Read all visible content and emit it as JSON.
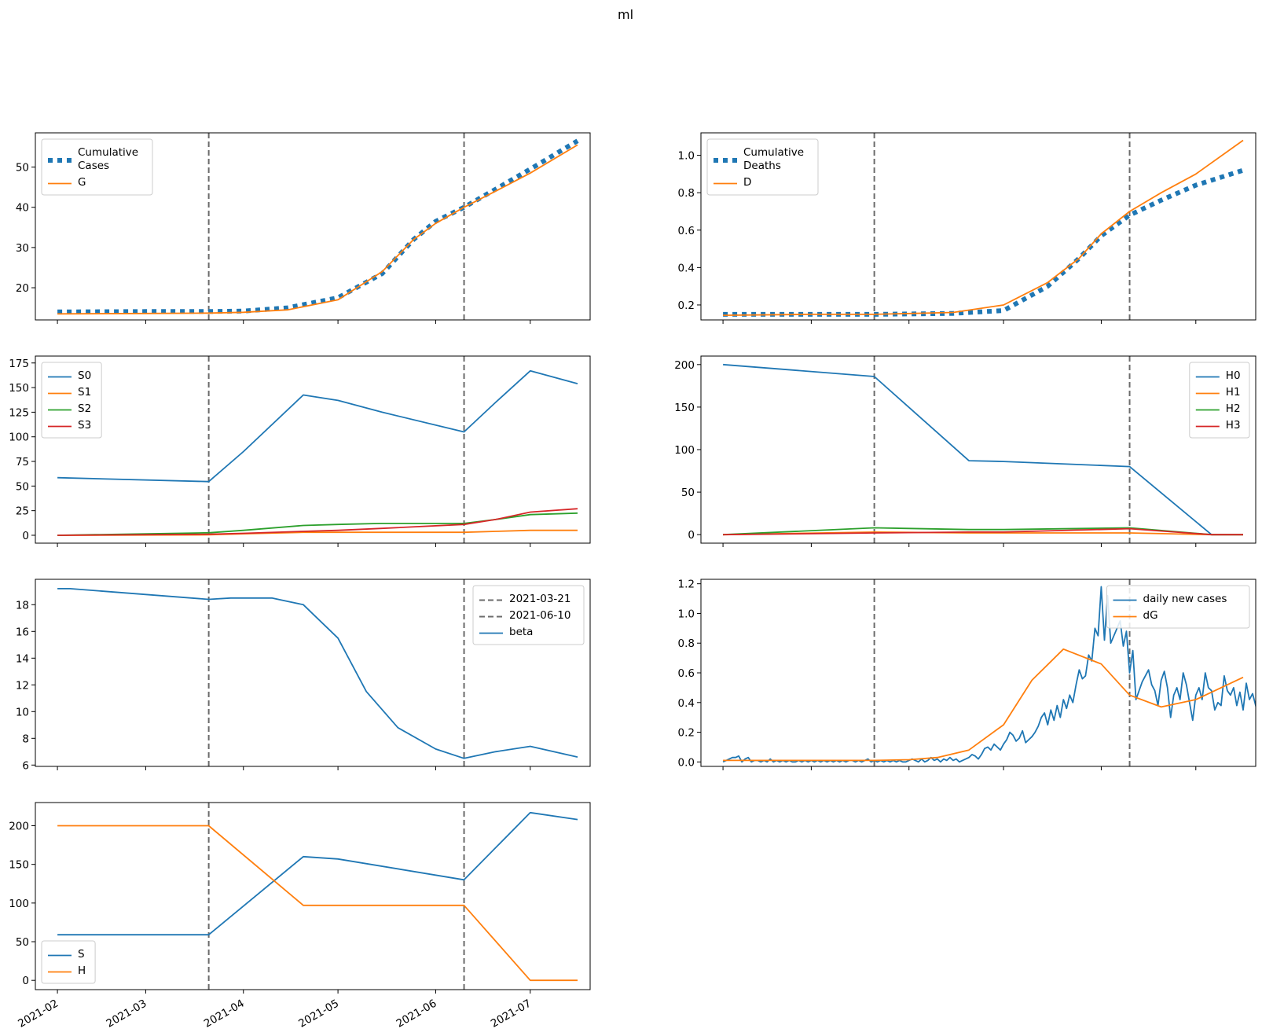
{
  "figure": {
    "suptitle": "ml"
  },
  "colors": {
    "blue": "#1f77b4",
    "orange": "#ff7f0e",
    "green": "#2ca02c",
    "red": "#d62728",
    "vline": "#6b6b6b"
  },
  "x_axis": {
    "start_date": "2021-01-25",
    "end_date": "2021-07-20",
    "tick_labels": [
      "2021-02",
      "2021-03",
      "2021-04",
      "2021-05",
      "2021-06",
      "2021-07"
    ],
    "tick_dates": [
      "2021-02-01",
      "2021-03-01",
      "2021-04-01",
      "2021-05-01",
      "2021-06-01",
      "2021-07-01"
    ],
    "vlines": [
      "2021-03-21",
      "2021-06-10"
    ]
  },
  "chart_data": [
    {
      "id": "cases",
      "type": "line",
      "x": [
        "2021-02-01",
        "2021-03-01",
        "2021-03-21",
        "2021-04-01",
        "2021-04-15",
        "2021-05-01",
        "2021-05-15",
        "2021-05-25",
        "2021-06-01",
        "2021-06-10",
        "2021-06-20",
        "2021-07-01",
        "2021-07-16"
      ],
      "ylim": [
        12.0,
        58.5
      ],
      "yticks": [
        20,
        30,
        40,
        50
      ],
      "legend_loc": "upper-left",
      "series": [
        {
          "name": "Cumulative\nCases",
          "style": "dotted-thick",
          "color": "blue",
          "values": [
            14.0,
            14.1,
            14.1,
            14.2,
            15.0,
            17.5,
            23.5,
            32.0,
            36.5,
            40.0,
            44.5,
            49.5,
            56.5
          ]
        },
        {
          "name": "G",
          "style": "solid",
          "color": "orange",
          "values": [
            13.5,
            13.6,
            13.7,
            13.9,
            14.5,
            17.0,
            24.0,
            32.0,
            36.0,
            40.0,
            44.0,
            48.5,
            55.5
          ]
        }
      ]
    },
    {
      "id": "deaths",
      "type": "line",
      "x": [
        "2021-02-01",
        "2021-03-01",
        "2021-03-21",
        "2021-04-15",
        "2021-05-01",
        "2021-05-15",
        "2021-05-25",
        "2021-06-01",
        "2021-06-10",
        "2021-06-20",
        "2021-07-01",
        "2021-07-16"
      ],
      "ylim": [
        0.12,
        1.12
      ],
      "yticks": [
        0.2,
        0.4,
        0.6,
        0.8,
        1.0
      ],
      "legend_loc": "upper-left",
      "series": [
        {
          "name": "Cumulative\nDeaths",
          "style": "dotted-thick",
          "color": "blue",
          "values": [
            0.15,
            0.15,
            0.15,
            0.155,
            0.17,
            0.3,
            0.45,
            0.57,
            0.68,
            0.76,
            0.84,
            0.92
          ]
        },
        {
          "name": "D",
          "style": "solid",
          "color": "orange",
          "values": [
            0.145,
            0.15,
            0.15,
            0.16,
            0.2,
            0.32,
            0.45,
            0.58,
            0.7,
            0.8,
            0.9,
            1.08
          ]
        }
      ]
    },
    {
      "id": "S",
      "type": "line",
      "x": [
        "2021-02-01",
        "2021-03-21",
        "2021-04-01",
        "2021-04-20",
        "2021-05-01",
        "2021-05-15",
        "2021-06-10",
        "2021-06-20",
        "2021-07-01",
        "2021-07-16"
      ],
      "ylim": [
        -8,
        182
      ],
      "yticks": [
        0,
        25,
        50,
        75,
        100,
        125,
        150,
        175
      ],
      "legend_loc": "upper-left",
      "series": [
        {
          "name": "S0",
          "color": "blue",
          "values": [
            58.5,
            54.5,
            85,
            142.5,
            137,
            125,
            105,
            135,
            167,
            154
          ]
        },
        {
          "name": "S1",
          "color": "orange",
          "values": [
            0,
            0.5,
            1.5,
            3,
            3,
            3,
            3,
            4,
            5,
            5
          ]
        },
        {
          "name": "S2",
          "color": "green",
          "values": [
            0,
            2.5,
            5,
            10,
            11,
            12,
            12,
            16,
            21,
            22.5
          ]
        },
        {
          "name": "S3",
          "color": "red",
          "values": [
            0,
            1,
            2,
            4,
            5,
            7,
            11,
            16,
            23.5,
            27
          ]
        }
      ]
    },
    {
      "id": "H",
      "type": "line",
      "x": [
        "2021-02-01",
        "2021-03-21",
        "2021-04-20",
        "2021-05-01",
        "2021-06-10",
        "2021-07-06",
        "2021-07-16"
      ],
      "ylim": [
        -10,
        210
      ],
      "yticks": [
        0,
        50,
        100,
        150,
        200
      ],
      "legend_loc": "upper-right",
      "series": [
        {
          "name": "H0",
          "color": "blue",
          "values": [
            200,
            186,
            87,
            86,
            80,
            0,
            0
          ]
        },
        {
          "name": "H1",
          "color": "orange",
          "values": [
            0,
            3,
            2,
            2,
            2,
            0,
            0
          ]
        },
        {
          "name": "H2",
          "color": "green",
          "values": [
            0,
            8,
            6,
            6,
            8,
            0,
            0
          ]
        },
        {
          "name": "H3",
          "color": "red",
          "values": [
            0,
            2,
            3,
            3,
            7,
            0,
            0
          ]
        }
      ]
    },
    {
      "id": "beta",
      "type": "line",
      "x": [
        "2021-02-01",
        "2021-02-05",
        "2021-03-21",
        "2021-03-28",
        "2021-04-10",
        "2021-04-20",
        "2021-05-01",
        "2021-05-10",
        "2021-05-20",
        "2021-06-01",
        "2021-06-10",
        "2021-06-20",
        "2021-07-01",
        "2021-07-16"
      ],
      "ylim": [
        5.9,
        19.9
      ],
      "yticks": [
        6,
        8,
        10,
        12,
        14,
        16,
        18
      ],
      "legend_loc": "upper-right",
      "vline_labels": [
        "2021-03-21",
        "2021-06-10"
      ],
      "series": [
        {
          "name": "beta",
          "color": "blue",
          "values": [
            19.2,
            19.2,
            18.4,
            18.5,
            18.5,
            18.0,
            15.5,
            11.5,
            8.8,
            7.2,
            6.5,
            7.0,
            7.4,
            6.6
          ]
        }
      ]
    },
    {
      "id": "daily",
      "type": "line",
      "x_start": "2021-02-01",
      "ylim": [
        -0.03,
        1.23
      ],
      "yticks": [
        0.0,
        0.2,
        0.4,
        0.6,
        0.8,
        1.0,
        1.2
      ],
      "legend_loc": "upper-right",
      "series": [
        {
          "name": "daily new cases",
          "color": "blue",
          "values": [
            0.0,
            0.01,
            0.02,
            0.03,
            0.03,
            0.04,
            0.0,
            0.02,
            0.03,
            0.0,
            0.01,
            0.01,
            0.0,
            0.01,
            0.0,
            0.02,
            0.0,
            0.01,
            0.0,
            0.01,
            0.0,
            0.01,
            0.0,
            0.0,
            0.01,
            0.0,
            0.01,
            0.0,
            0.01,
            0.0,
            0.01,
            0.0,
            0.01,
            0.0,
            0.01,
            0.0,
            0.01,
            0.0,
            0.01,
            0.0,
            0.01,
            0.01,
            0.0,
            0.01,
            0.0,
            0.01,
            0.02,
            0.0,
            0.01,
            0.0,
            0.01,
            0.0,
            0.01,
            0.0,
            0.01,
            0.0,
            0.01,
            0.0,
            0.0,
            0.01,
            0.02,
            0.01,
            0.0,
            0.02,
            0.0,
            0.01,
            0.03,
            0.01,
            0.02,
            0.0,
            0.02,
            0.01,
            0.03,
            0.01,
            0.02,
            0.0,
            0.01,
            0.02,
            0.03,
            0.05,
            0.04,
            0.02,
            0.05,
            0.09,
            0.1,
            0.08,
            0.12,
            0.1,
            0.08,
            0.12,
            0.15,
            0.2,
            0.18,
            0.14,
            0.16,
            0.21,
            0.13,
            0.15,
            0.17,
            0.2,
            0.24,
            0.3,
            0.33,
            0.25,
            0.35,
            0.28,
            0.38,
            0.3,
            0.42,
            0.36,
            0.45,
            0.4,
            0.52,
            0.62,
            0.56,
            0.58,
            0.72,
            0.68,
            0.9,
            0.85,
            1.18,
            0.82,
            1.12,
            0.8,
            0.85,
            0.9,
            0.95,
            0.78,
            0.88,
            0.6,
            0.75,
            0.42,
            0.48,
            0.54,
            0.58,
            0.62,
            0.52,
            0.48,
            0.38,
            0.55,
            0.61,
            0.5,
            0.3,
            0.45,
            0.5,
            0.42,
            0.6,
            0.52,
            0.4,
            0.28,
            0.45,
            0.5,
            0.42,
            0.6,
            0.5,
            0.48,
            0.35,
            0.4,
            0.38,
            0.58,
            0.48,
            0.45,
            0.5,
            0.38,
            0.47,
            0.35,
            0.53,
            0.42,
            0.46,
            0.38,
            0.28,
            0.35,
            0.42,
            0.41
          ]
        },
        {
          "name": "dG",
          "color": "orange",
          "x": [
            "2021-02-01",
            "2021-03-21",
            "2021-04-01",
            "2021-04-10",
            "2021-04-20",
            "2021-05-01",
            "2021-05-10",
            "2021-05-20",
            "2021-06-01",
            "2021-06-10",
            "2021-06-20",
            "2021-07-01",
            "2021-07-16"
          ],
          "values": [
            0.01,
            0.01,
            0.015,
            0.03,
            0.08,
            0.25,
            0.55,
            0.76,
            0.66,
            0.45,
            0.37,
            0.42,
            0.57
          ]
        }
      ]
    },
    {
      "id": "SH",
      "type": "line",
      "x": [
        "2021-02-01",
        "2021-03-21",
        "2021-04-20",
        "2021-05-01",
        "2021-06-10",
        "2021-07-01",
        "2021-07-16"
      ],
      "ylim": [
        -12,
        230
      ],
      "yticks": [
        0,
        50,
        100,
        150,
        200
      ],
      "legend_loc": "lower-left",
      "series": [
        {
          "name": "S",
          "color": "blue",
          "values": [
            59,
            59,
            160,
            157,
            130,
            217,
            208
          ]
        },
        {
          "name": "H",
          "color": "orange",
          "values": [
            200,
            200,
            97,
            97,
            97,
            0,
            0
          ]
        }
      ]
    }
  ]
}
